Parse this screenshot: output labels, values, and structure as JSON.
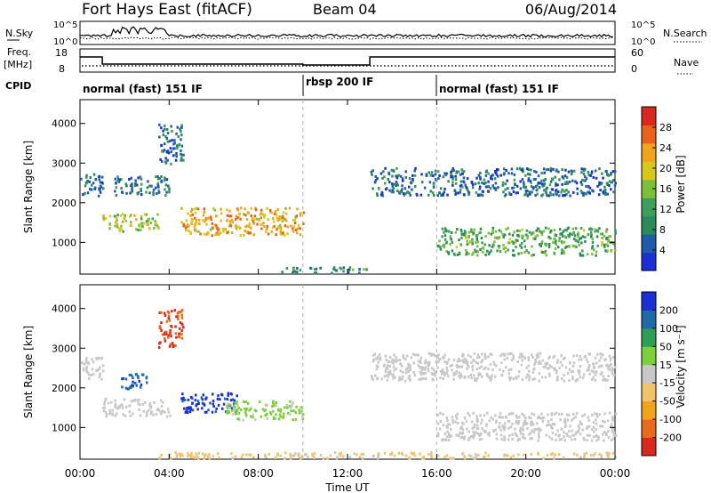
{
  "header": {
    "title": "Fort Hays East (fitACF)",
    "beam": "Beam 04",
    "date": "06/Aug/2014"
  },
  "status_panels": {
    "nsky_label": "N.Sky",
    "nsearch_label": "N.Search",
    "noise_ticks": [
      "10^5",
      "10^0"
    ],
    "freq_label_1": "Freq.",
    "freq_label_2": "[MHz]",
    "freq_ticks": [
      "18",
      "8"
    ],
    "nave_label": "Nave",
    "nave_ticks": [
      "60",
      "0"
    ],
    "cpid_label": "CPID",
    "cpid_segments": [
      {
        "label": "normal (fast) 151 IF",
        "start": 0,
        "end": 10
      },
      {
        "label": "rbsp 200 IF",
        "start": 10,
        "end": 16
      },
      {
        "label": "normal (fast) 151 IF",
        "start": 16,
        "end": 24
      }
    ],
    "freq_steps_mhz": [
      [
        0,
        16
      ],
      [
        1,
        12
      ],
      [
        10,
        11.5
      ],
      [
        13,
        16
      ],
      [
        24,
        16
      ]
    ]
  },
  "time_axis": {
    "title": "Time UT",
    "ticks": [
      "00:00",
      "04:00",
      "08:00",
      "12:00",
      "16:00",
      "20:00",
      "00:00"
    ],
    "range_hours": [
      0,
      24
    ]
  },
  "chart_data": [
    {
      "type": "heatmap",
      "name": "power",
      "ylabel": "Slant Range [km]",
      "yticks": [
        "4000",
        "3000",
        "2000",
        "1000"
      ],
      "ylim": [
        200,
        4600
      ],
      "colorbar_label": "Power [dB]",
      "colorbar_ticks": [
        "28",
        "24",
        "20",
        "16",
        "12",
        "8",
        "4"
      ],
      "colorbar_range": [
        0,
        30
      ],
      "colors": [
        "#1a2fd6",
        "#1f5ca8",
        "#2a8a5a",
        "#3f9e5a",
        "#7dbf3a",
        "#d8c81e",
        "#f1a41a",
        "#e8621c",
        "#d8281f"
      ],
      "echo_regions": [
        {
          "t_start": 0.0,
          "t_end": 1.0,
          "r_low": 2200,
          "r_high": 2800,
          "power_db": 6
        },
        {
          "t_start": 1.0,
          "t_end": 3.5,
          "r_low": 1300,
          "r_high": 1750,
          "power_db": 16
        },
        {
          "t_start": 1.5,
          "t_end": 4.0,
          "r_low": 2200,
          "r_high": 2700,
          "power_db": 7
        },
        {
          "t_start": 3.5,
          "t_end": 4.6,
          "r_low": 3000,
          "r_high": 4000,
          "power_db": 6
        },
        {
          "t_start": 4.5,
          "t_end": 10.0,
          "r_low": 1200,
          "r_high": 1900,
          "power_db": 21
        },
        {
          "t_start": 9.0,
          "t_end": 13.0,
          "r_low": 250,
          "r_high": 400,
          "power_db": 9
        },
        {
          "t_start": 13.0,
          "t_end": 24.0,
          "r_low": 2200,
          "r_high": 2900,
          "power_db": 6
        },
        {
          "t_start": 16.0,
          "t_end": 24.0,
          "r_low": 700,
          "r_high": 1400,
          "power_db": 12
        }
      ]
    },
    {
      "type": "heatmap",
      "name": "velocity",
      "ylabel": "Slant Range [km]",
      "yticks": [
        "4000",
        "3000",
        "2000",
        "1000"
      ],
      "ylim": [
        200,
        4600
      ],
      "colorbar_label": "Velocity [m s⁻¹]",
      "colorbar_ticks": [
        "200",
        "100",
        "50",
        "15",
        "-15",
        "-50",
        "-100",
        "-200"
      ],
      "colorbar_range": [
        -250,
        250
      ],
      "colors": [
        "#d8281f",
        "#e86a1c",
        "#f1a41a",
        "#f3c36a",
        "#c8c8c8",
        "#7dd03a",
        "#2e9e55",
        "#1f6aa8",
        "#1a2fd6"
      ],
      "echo_regions": [
        {
          "t_start": 0.0,
          "t_end": 1.0,
          "r_low": 2200,
          "r_high": 2800,
          "velocity": 0
        },
        {
          "t_start": 1.0,
          "t_end": 4.0,
          "r_low": 1300,
          "r_high": 1750,
          "velocity": 0
        },
        {
          "t_start": 1.8,
          "t_end": 3.0,
          "r_low": 2000,
          "r_high": 2400,
          "velocity": 180
        },
        {
          "t_start": 3.5,
          "t_end": 4.6,
          "r_low": 3000,
          "r_high": 4000,
          "velocity": -200
        },
        {
          "t_start": 4.5,
          "t_end": 7.0,
          "r_low": 1400,
          "r_high": 1900,
          "velocity": 200
        },
        {
          "t_start": 6.5,
          "t_end": 10.0,
          "r_low": 1200,
          "r_high": 1700,
          "velocity": 40
        },
        {
          "t_start": 3.5,
          "t_end": 24.0,
          "r_low": 250,
          "r_high": 400,
          "velocity": -40
        },
        {
          "t_start": 13.0,
          "t_end": 24.0,
          "r_low": 2200,
          "r_high": 2900,
          "velocity": 0
        },
        {
          "t_start": 16.0,
          "t_end": 24.0,
          "r_low": 700,
          "r_high": 1400,
          "velocity": 0
        }
      ]
    }
  ]
}
